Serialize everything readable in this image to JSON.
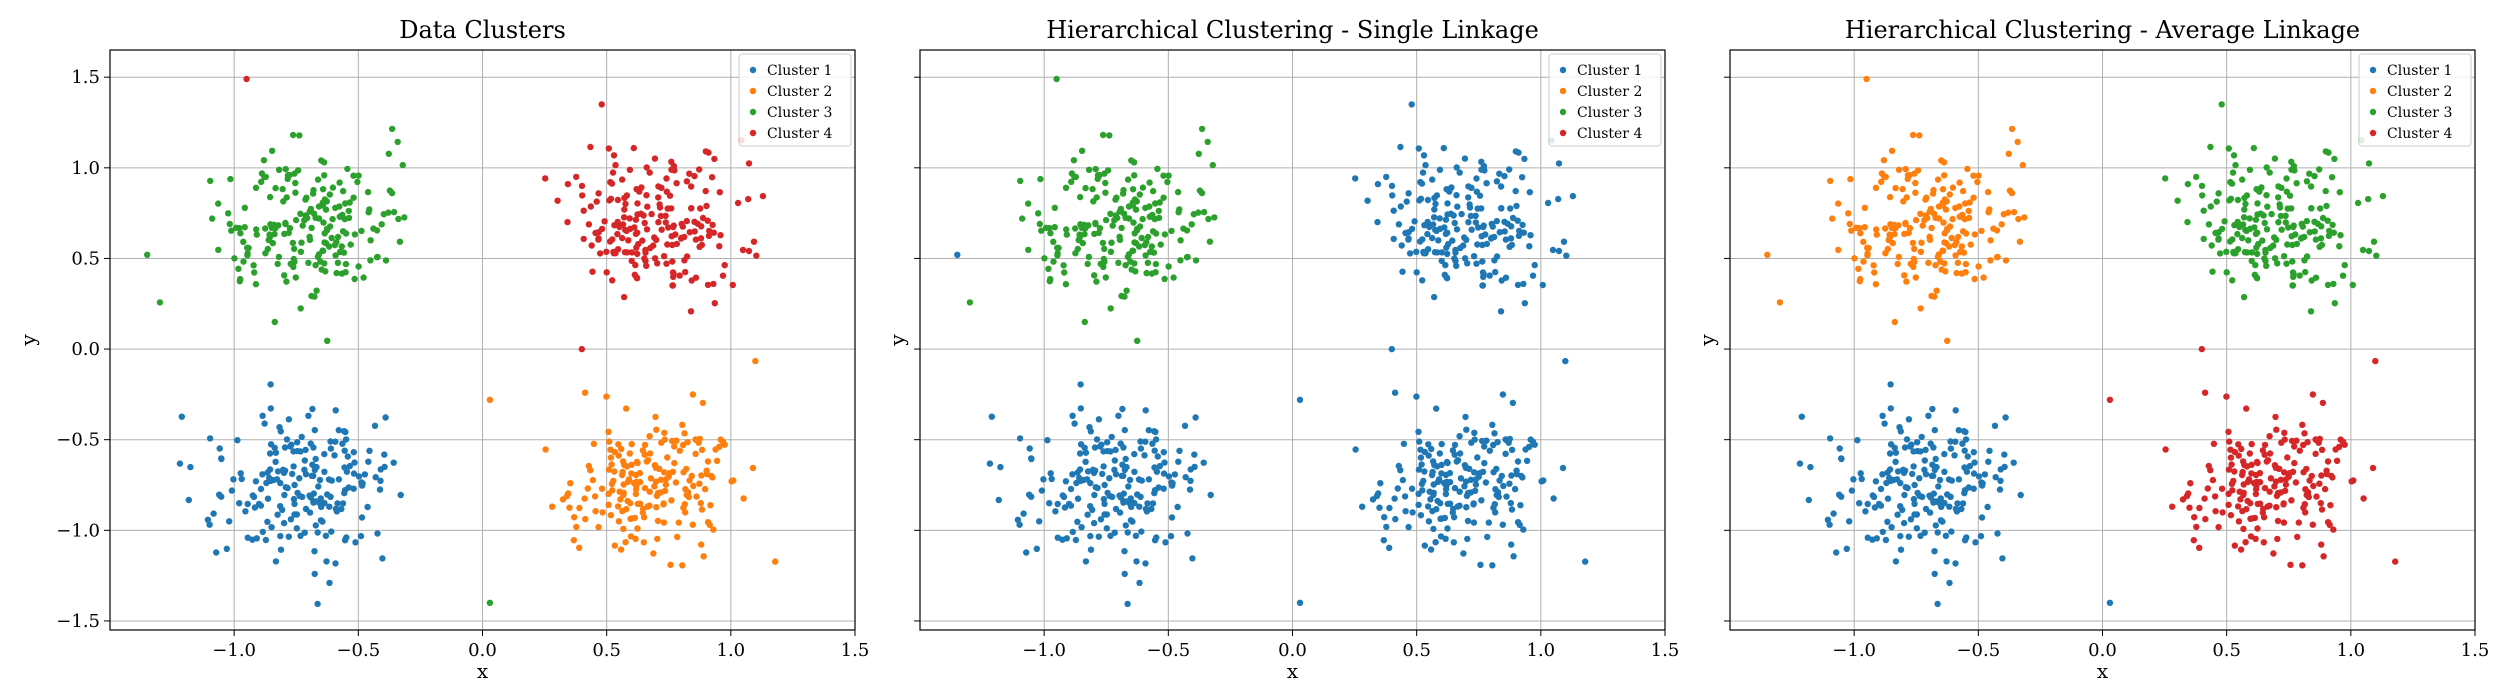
{
  "colors": {
    "c1": "#1f77b4",
    "c2": "#ff7f0e",
    "c3": "#2ca02c",
    "c4": "#d62728"
  },
  "chart_data": [
    {
      "type": "scatter",
      "title": "Data Clusters",
      "xlabel": "x",
      "ylabel": "y",
      "xlim": [
        -1.5,
        1.5
      ],
      "ylim": [
        -1.55,
        1.65
      ],
      "xticks": [
        -1.0,
        -0.5,
        0.0,
        0.5,
        1.0,
        1.5
      ],
      "yticks": [
        -1.5,
        -1.0,
        -0.5,
        0.0,
        0.5,
        1.0,
        1.5
      ],
      "grid": true,
      "legend": "upper right",
      "legend_entries": [
        "Cluster 1",
        "Cluster 2",
        "Cluster 3",
        "Cluster 4"
      ],
      "series": [
        {
          "name": "Cluster 1",
          "color": "#1f77b4",
          "center": [
            -0.7,
            -0.75
          ],
          "spread": [
            0.19,
            0.2
          ],
          "n": 200
        },
        {
          "name": "Cluster 2",
          "color": "#ff7f0e",
          "center": [
            0.7,
            -0.75
          ],
          "spread": [
            0.19,
            0.2
          ],
          "n": 200
        },
        {
          "name": "Cluster 3",
          "color": "#2ca02c",
          "center": [
            -0.7,
            0.7
          ],
          "spread": [
            0.19,
            0.2
          ],
          "n": 200
        },
        {
          "name": "Cluster 4",
          "color": "#d62728",
          "center": [
            0.7,
            0.7
          ],
          "spread": [
            0.19,
            0.2
          ],
          "n": 200
        }
      ],
      "extra_points": [
        {
          "series": 3,
          "x": -0.95,
          "y": 1.49
        },
        {
          "series": 2,
          "x": -1.35,
          "y": 0.52
        },
        {
          "series": 3,
          "x": 0.48,
          "y": 1.35
        },
        {
          "series": 2,
          "x": 0.03,
          "y": -1.4
        },
        {
          "series": 1,
          "x": 0.03,
          "y": -0.28
        },
        {
          "series": 3,
          "x": 0.4,
          "y": 0.0
        }
      ]
    },
    {
      "type": "scatter",
      "title": "Hierarchical Clustering - Single Linkage",
      "xlabel": "x",
      "ylabel": "y",
      "xlim": [
        -1.5,
        1.5
      ],
      "ylim": [
        -1.55,
        1.65
      ],
      "xticks": [
        -1.0,
        -0.5,
        0.0,
        0.5,
        1.0,
        1.5
      ],
      "yticks": [
        -1.5,
        -1.0,
        -0.5,
        0.0,
        0.5,
        1.0,
        1.5
      ],
      "grid": true,
      "legend": "upper right",
      "legend_entries": [
        "Cluster 1",
        "Cluster 2",
        "Cluster 3",
        "Cluster 4"
      ],
      "series": [
        {
          "name": "Cluster 1",
          "color": "#1f77b4",
          "center": [
            -0.7,
            -0.75
          ],
          "spread": [
            0.19,
            0.2
          ],
          "n": 200
        },
        {
          "name": "Cluster 1",
          "color": "#1f77b4",
          "center": [
            0.7,
            -0.75
          ],
          "spread": [
            0.19,
            0.2
          ],
          "n": 200
        },
        {
          "name": "Cluster 3",
          "color": "#2ca02c",
          "center": [
            -0.7,
            0.7
          ],
          "spread": [
            0.19,
            0.2
          ],
          "n": 200
        },
        {
          "name": "Cluster 1",
          "color": "#1f77b4",
          "center": [
            0.7,
            0.7
          ],
          "spread": [
            0.19,
            0.2
          ],
          "n": 200
        }
      ],
      "extra_points": [
        {
          "series": 2,
          "x": -0.95,
          "y": 1.49
        },
        {
          "series": 1,
          "x": -1.35,
          "y": 0.52
        },
        {
          "series": 0,
          "x": 0.48,
          "y": 1.35
        },
        {
          "series": 3,
          "x": 0.03,
          "y": -1.4
        },
        {
          "series": 0,
          "x": 0.03,
          "y": -0.28
        },
        {
          "series": 0,
          "x": 0.4,
          "y": 0.0
        }
      ]
    },
    {
      "type": "scatter",
      "title": "Hierarchical Clustering - Average Linkage",
      "xlabel": "x",
      "ylabel": "y",
      "xlim": [
        -1.5,
        1.5
      ],
      "ylim": [
        -1.55,
        1.65
      ],
      "xticks": [
        -1.0,
        -0.5,
        0.0,
        0.5,
        1.0,
        1.5
      ],
      "yticks": [
        -1.5,
        -1.0,
        -0.5,
        0.0,
        0.5,
        1.0,
        1.5
      ],
      "grid": true,
      "legend": "upper right",
      "legend_entries": [
        "Cluster 1",
        "Cluster 2",
        "Cluster 3",
        "Cluster 4"
      ],
      "series": [
        {
          "name": "Cluster 1",
          "color": "#1f77b4",
          "center": [
            -0.7,
            -0.75
          ],
          "spread": [
            0.19,
            0.2
          ],
          "n": 200
        },
        {
          "name": "Cluster 4",
          "color": "#d62728",
          "center": [
            0.7,
            -0.75
          ],
          "spread": [
            0.19,
            0.2
          ],
          "n": 200
        },
        {
          "name": "Cluster 2",
          "color": "#ff7f0e",
          "center": [
            -0.7,
            0.7
          ],
          "spread": [
            0.19,
            0.2
          ],
          "n": 200
        },
        {
          "name": "Cluster 3",
          "color": "#2ca02c",
          "center": [
            0.7,
            0.7
          ],
          "spread": [
            0.19,
            0.2
          ],
          "n": 200
        }
      ],
      "extra_points": [
        {
          "series": 2,
          "x": -0.95,
          "y": 1.49
        },
        {
          "series": 2,
          "x": -1.35,
          "y": 0.52
        },
        {
          "series": 3,
          "x": 0.48,
          "y": 1.35
        },
        {
          "series": 0,
          "x": 0.03,
          "y": -1.4
        },
        {
          "series": 1,
          "x": 0.03,
          "y": -0.28
        },
        {
          "series": 1,
          "x": 0.4,
          "y": 0.0
        }
      ]
    }
  ]
}
